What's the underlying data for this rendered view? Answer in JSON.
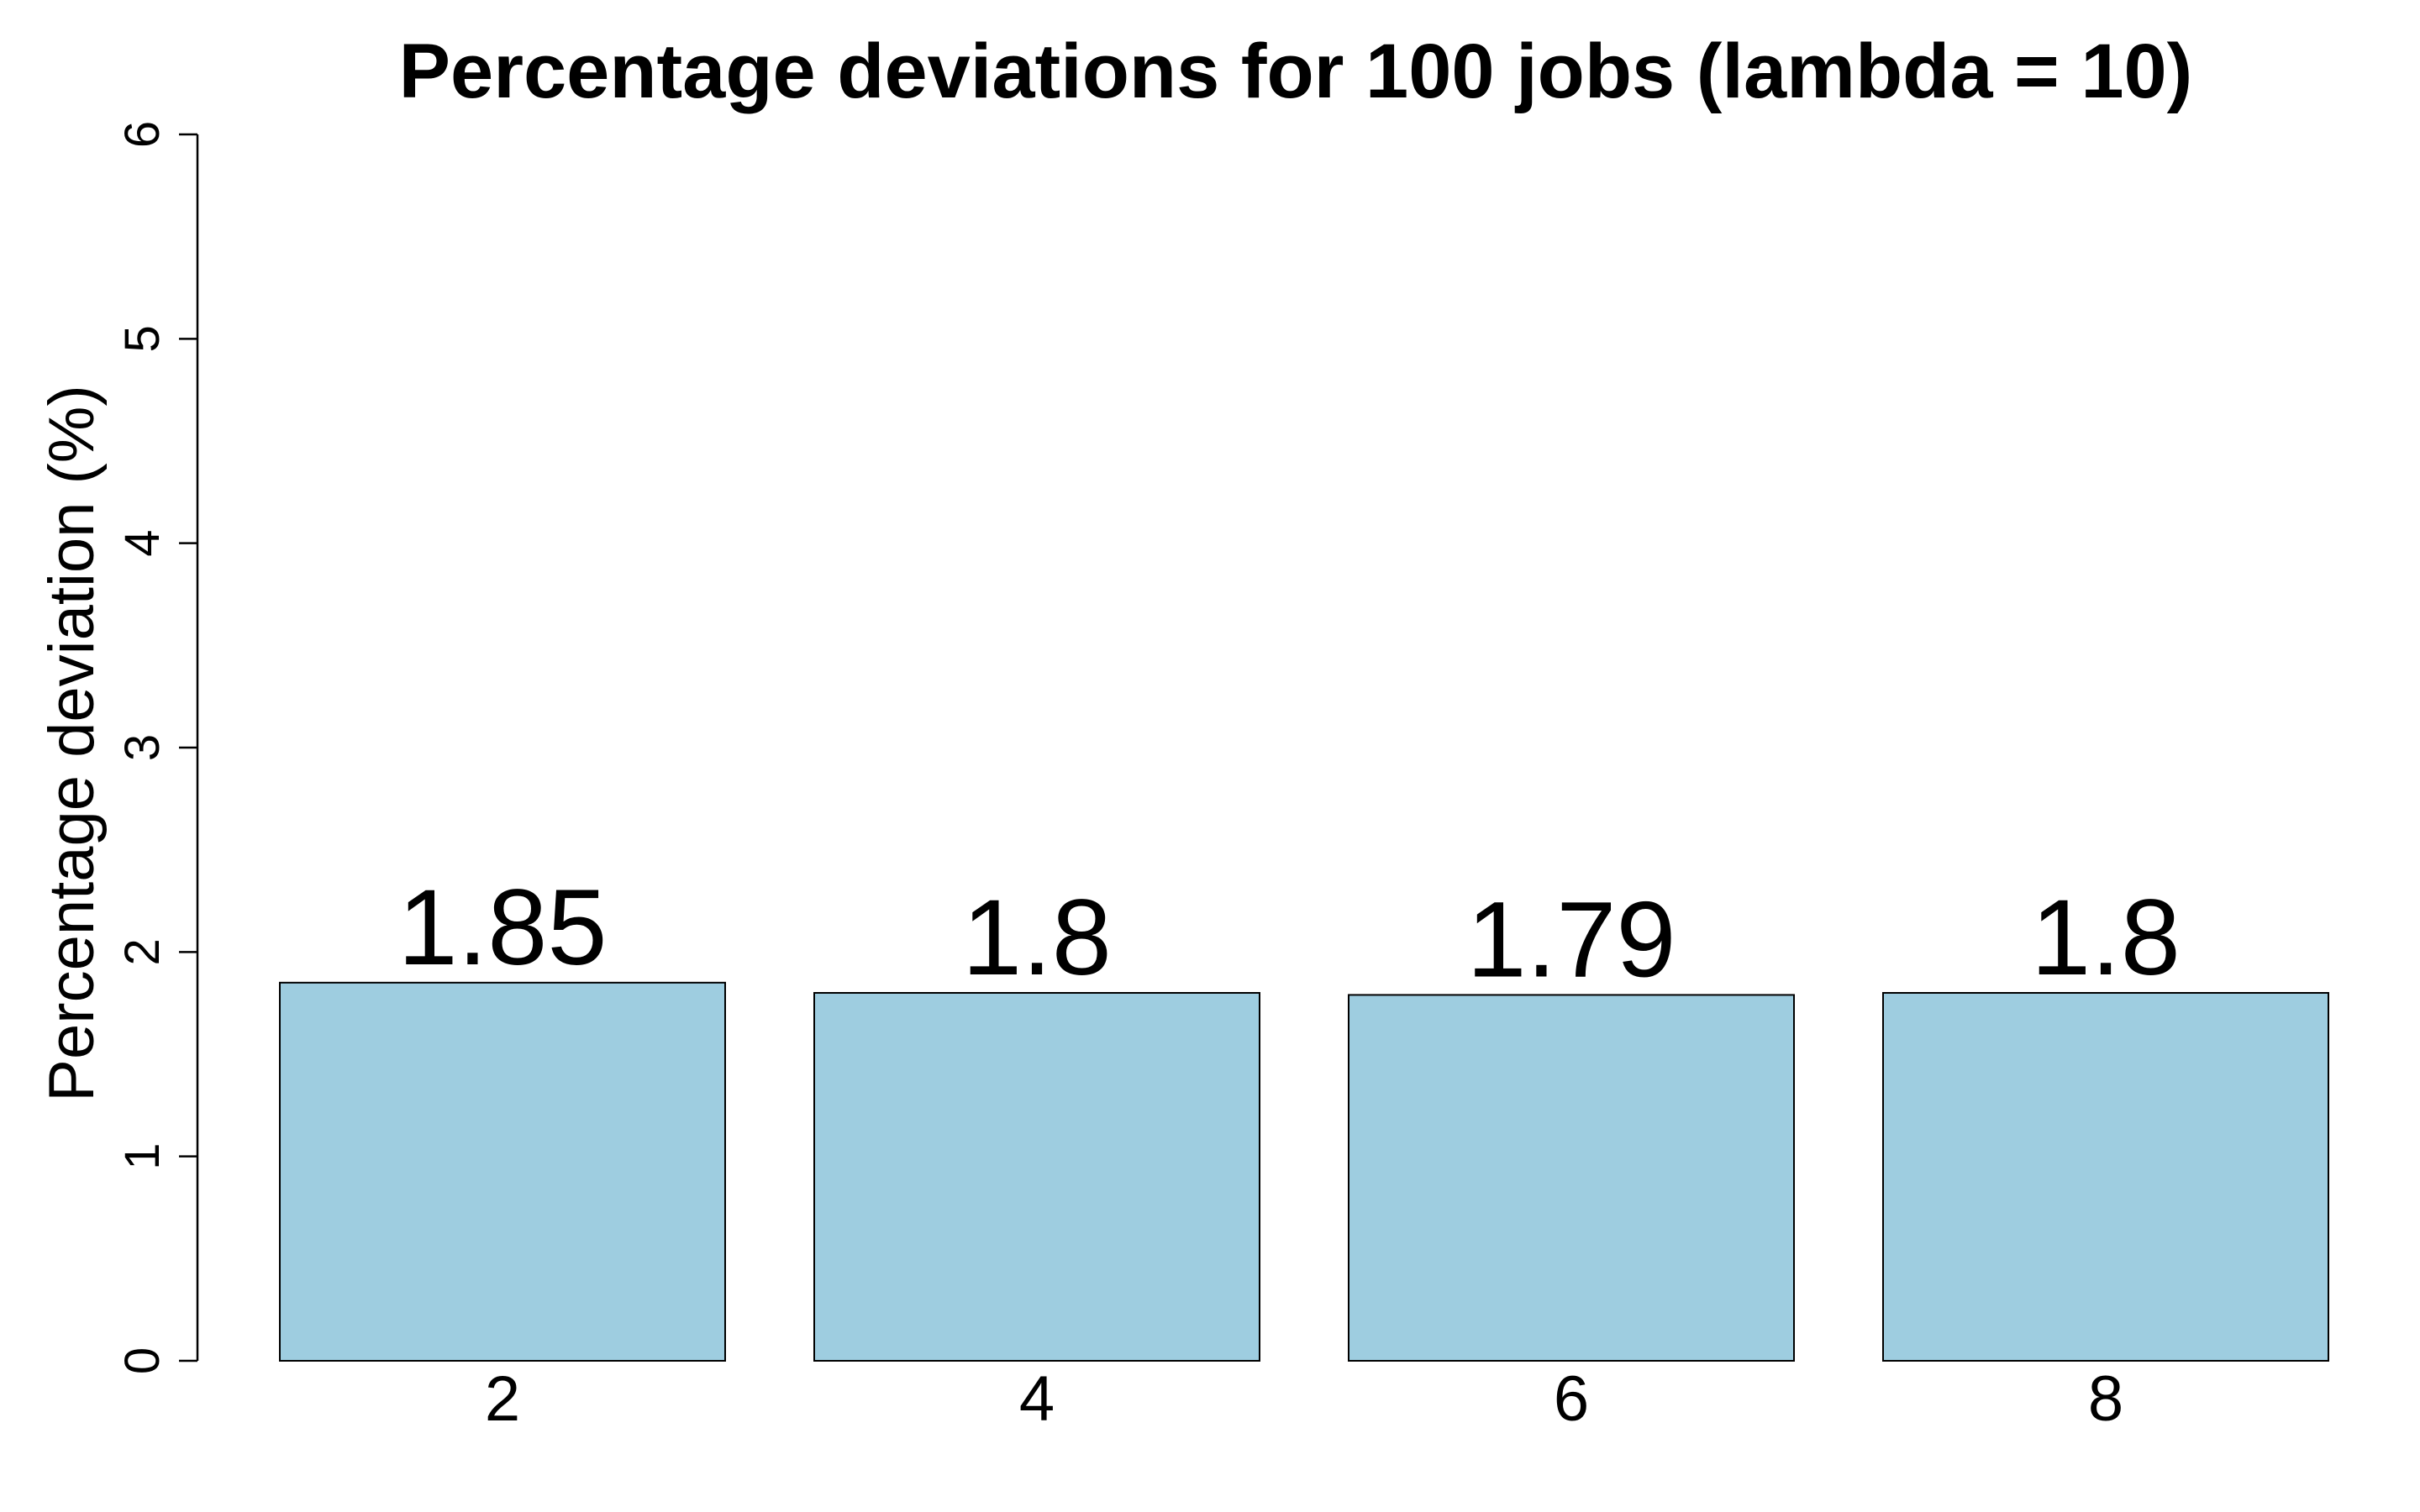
{
  "chart_data": {
    "type": "bar",
    "title": "Percentage deviations for 100 jobs (lambda = 10)",
    "xlabel": "",
    "ylabel": "Percentage deviation (%)",
    "categories": [
      "2",
      "4",
      "6",
      "8"
    ],
    "values": [
      1.85,
      1.8,
      1.79,
      1.8
    ],
    "value_labels": [
      "1.85",
      "1.8",
      "1.79",
      "1.8"
    ],
    "ylim": [
      0,
      6
    ],
    "yticks": [
      0,
      1,
      2,
      3,
      4,
      5,
      6
    ],
    "ytick_labels": [
      "0",
      "1",
      "2",
      "3",
      "4",
      "5",
      "6"
    ],
    "grid": false,
    "legend": "none",
    "bar_color": "#9ecde0",
    "edge_color": "#000000"
  }
}
